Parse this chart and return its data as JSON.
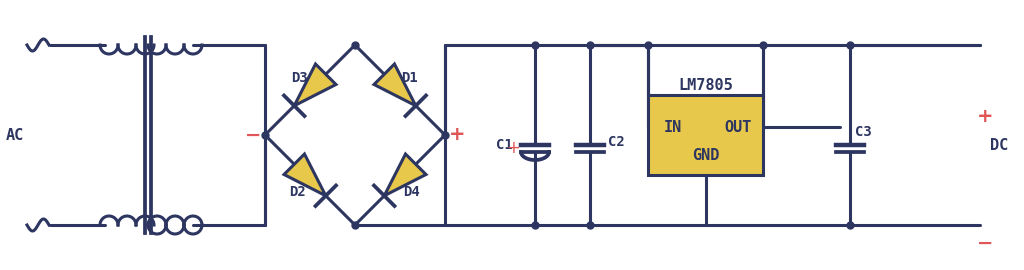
{
  "bg_color": "#ffffff",
  "line_color": "#2d3561",
  "line_width": 2.2,
  "dot_color": "#2d3561",
  "dot_size": 5,
  "diode_fill": "#e8c84a",
  "diode_edge": "#2d3561",
  "ic_fill": "#e8c84a",
  "ic_edge": "#2d3561",
  "red_color": "#e05555",
  "ac_label": "AC",
  "dc_label": "DC",
  "lm_label": "LM7805",
  "lm_in": "IN",
  "lm_out": "OUT",
  "lm_gnd": "GND",
  "c1_label": "C1",
  "c2_label": "C2",
  "c3_label": "C3",
  "d1_label": "D1",
  "d2_label": "D2",
  "d3_label": "D3",
  "d4_label": "D4",
  "font_size": 11,
  "font_family": "monospace"
}
